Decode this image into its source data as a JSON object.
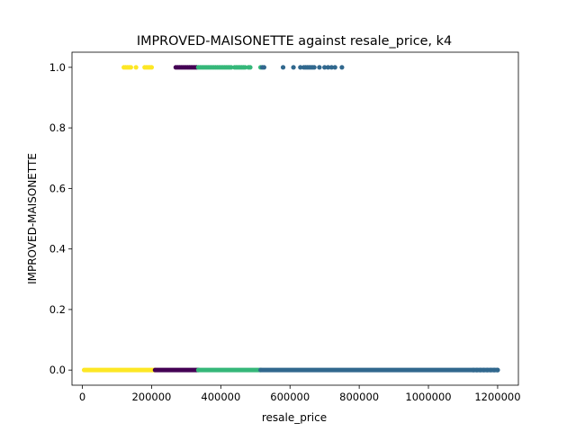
{
  "chart_data": {
    "type": "scatter",
    "title": "IMPROVED-MAISONETTE against resale_price, k4",
    "xlabel": "resale_price",
    "ylabel": "IMPROVED-MAISONETTE",
    "xlim": [
      -30000,
      1260000
    ],
    "ylim": [
      -0.05,
      1.05
    ],
    "x_ticks": [
      0,
      200000,
      400000,
      600000,
      800000,
      1000000,
      1200000
    ],
    "x_tick_labels": [
      "0",
      "200000",
      "400000",
      "600000",
      "800000",
      "1000000",
      "1200000"
    ],
    "y_ticks": [
      0.0,
      0.2,
      0.4,
      0.6,
      0.8,
      1.0
    ],
    "y_tick_labels": [
      "0.0",
      "0.2",
      "0.4",
      "0.6",
      "0.8",
      "1.0"
    ],
    "grid": false,
    "legend": "none",
    "clusters": [
      {
        "color": "#fde725",
        "y0_range": [
          5000,
          210000
        ],
        "y1_points": [
          120000,
          125000,
          130000,
          135000,
          140000,
          155000,
          180000,
          185000,
          190000,
          195000,
          200000
        ]
      },
      {
        "color": "#440154",
        "y0_range": [
          210000,
          335000
        ],
        "y1_points": [
          270000,
          275000,
          280000,
          285000,
          290000,
          295000,
          300000,
          305000,
          310000,
          315000,
          320000,
          325000,
          330000
        ]
      },
      {
        "color": "#35b779",
        "y0_range": [
          335000,
          515000
        ],
        "y1_points": [
          335000,
          340000,
          345000,
          350000,
          355000,
          360000,
          365000,
          370000,
          375000,
          380000,
          385000,
          390000,
          395000,
          400000,
          405000,
          410000,
          415000,
          420000,
          425000,
          430000,
          440000,
          445000,
          450000,
          455000,
          460000,
          465000,
          470000,
          480000,
          485000,
          515000
        ]
      },
      {
        "color": "#31688e",
        "y0_range": [
          515000,
          1200000
        ],
        "y0_sparse": [
          1130000,
          1140000,
          1150000,
          1160000,
          1170000,
          1180000,
          1190000,
          1200000
        ],
        "y1_points": [
          520000,
          525000,
          580000,
          610000,
          630000,
          640000,
          645000,
          650000,
          655000,
          660000,
          665000,
          670000,
          685000,
          700000,
          710000,
          720000,
          730000,
          750000
        ]
      }
    ]
  }
}
